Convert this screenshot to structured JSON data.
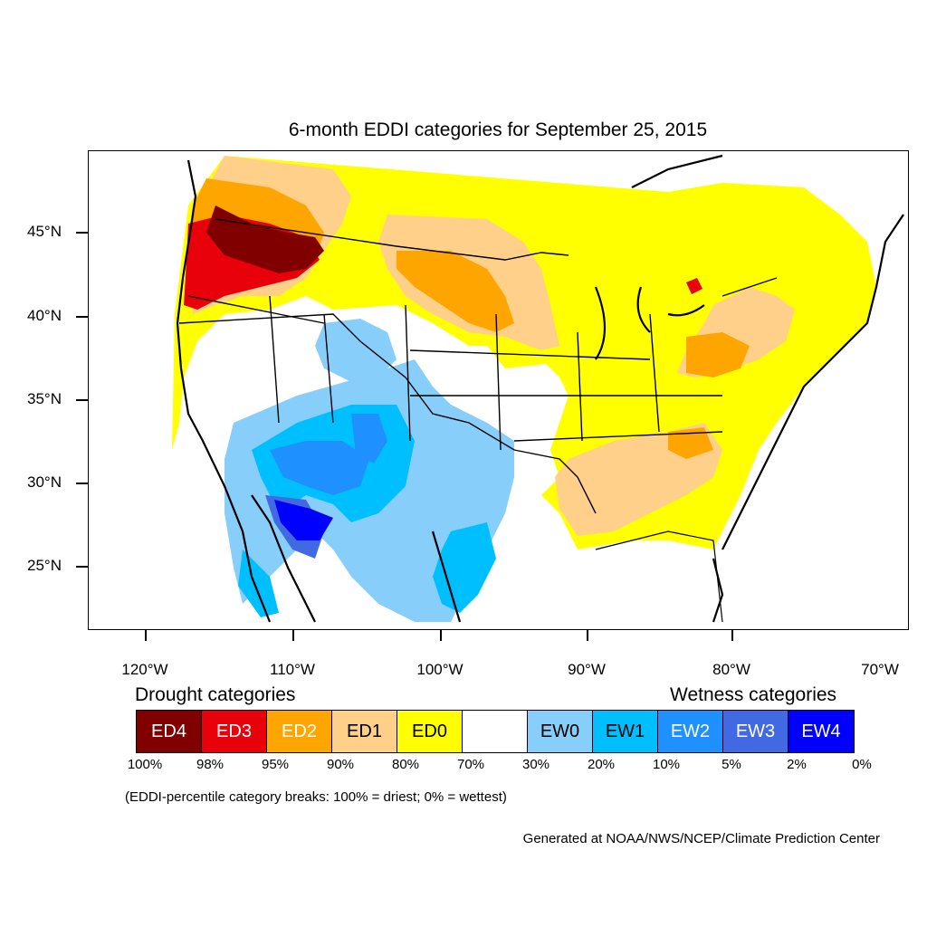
{
  "title": "6-month EDDI categories for September 25, 2015",
  "axes": {
    "y_labels": [
      "45°N",
      "40°N",
      "35°N",
      "30°N",
      "25°N"
    ],
    "x_labels": [
      "120°W",
      "110°W",
      "100°W",
      "90°W",
      "80°W",
      "70°W"
    ]
  },
  "legend": {
    "drought_title": "Drought categories",
    "wetness_title": "Wetness categories",
    "categories": [
      {
        "label": "ED4",
        "color": "#800000",
        "text_color": "#ffffff"
      },
      {
        "label": "ED3",
        "color": "#e8000b",
        "text_color": "#ffffff"
      },
      {
        "label": "ED2",
        "color": "#ffa500",
        "text_color": "#ffffff"
      },
      {
        "label": "ED1",
        "color": "#ffd08a",
        "text_color": "#000000"
      },
      {
        "label": "ED0",
        "color": "#ffff00",
        "text_color": "#000000"
      },
      {
        "label": "",
        "color": "#ffffff",
        "text_color": "#000000"
      },
      {
        "label": "EW0",
        "color": "#87cefa",
        "text_color": "#000000"
      },
      {
        "label": "EW1",
        "color": "#00bfff",
        "text_color": "#000000"
      },
      {
        "label": "EW2",
        "color": "#1e90ff",
        "text_color": "#ffffff"
      },
      {
        "label": "EW3",
        "color": "#4169e1",
        "text_color": "#ffffff"
      },
      {
        "label": "EW4",
        "color": "#0000ff",
        "text_color": "#ffffff"
      }
    ],
    "percent_breaks": [
      "100%",
      "98%",
      "95%",
      "90%",
      "80%",
      "70%",
      "30%",
      "20%",
      "10%",
      "5%",
      "2%",
      "0%"
    ]
  },
  "note": "(EDDI-percentile category breaks: 100% = driest; 0% = wettest)",
  "credit": "Generated at NOAA/NWS/NCEP/Climate Prediction Center"
}
